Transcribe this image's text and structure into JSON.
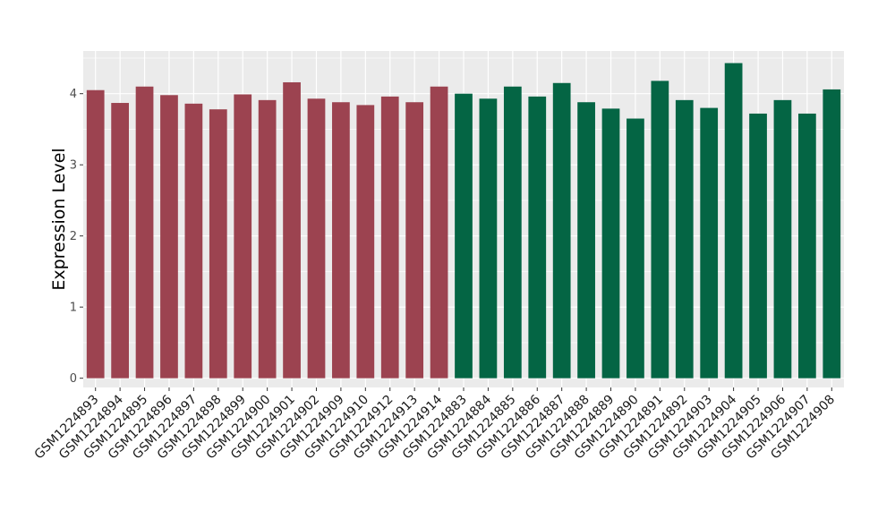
{
  "chart_data": {
    "type": "bar",
    "title": "",
    "xlabel": "",
    "ylabel": "Expression Level",
    "ylim": [
      -0.13,
      4.6
    ],
    "yticks": [
      0,
      1,
      2,
      3,
      4
    ],
    "grid": true,
    "legend": "none",
    "colors": {
      "panel_background": "#ebebeb",
      "grid": "#ffffff",
      "group_1": "#9c4350",
      "group_2": "#046544"
    },
    "categories": [
      "GSM1224893",
      "GSM1224894",
      "GSM1224895",
      "GSM1224896",
      "GSM1224897",
      "GSM1224898",
      "GSM1224899",
      "GSM1224900",
      "GSM1224901",
      "GSM1224902",
      "GSM1224909",
      "GSM1224910",
      "GSM1224912",
      "GSM1224913",
      "GSM1224914",
      "GSM1224883",
      "GSM1224884",
      "GSM1224885",
      "GSM1224886",
      "GSM1224887",
      "GSM1224888",
      "GSM1224889",
      "GSM1224890",
      "GSM1224891",
      "GSM1224892",
      "GSM1224903",
      "GSM1224904",
      "GSM1224905",
      "GSM1224906",
      "GSM1224907",
      "GSM1224908"
    ],
    "values": [
      4.05,
      3.87,
      4.1,
      3.98,
      3.86,
      3.78,
      3.99,
      3.91,
      4.16,
      3.93,
      3.88,
      3.84,
      3.96,
      3.88,
      4.1,
      4.0,
      3.93,
      4.1,
      3.96,
      4.15,
      3.88,
      3.79,
      3.65,
      4.18,
      3.91,
      3.8,
      4.43,
      3.72,
      3.91,
      3.72,
      4.06
    ],
    "groups": [
      1,
      1,
      1,
      1,
      1,
      1,
      1,
      1,
      1,
      1,
      1,
      1,
      1,
      1,
      1,
      2,
      2,
      2,
      2,
      2,
      2,
      2,
      2,
      2,
      2,
      2,
      2,
      2,
      2,
      2,
      2
    ]
  }
}
